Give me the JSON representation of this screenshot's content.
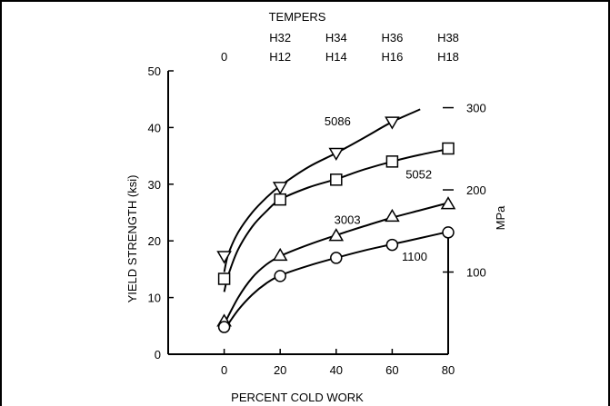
{
  "chart_data": {
    "type": "line",
    "xlabel": "PERCENT COLD WORK",
    "ylabel": "YIELD STRENGTH (ksi)",
    "ylabel_right": "MPa",
    "top_axis_title": "TEMPERS",
    "top_ticks": [
      {
        "x": 0,
        "row1": "",
        "row2": "0"
      },
      {
        "x": 20,
        "row1": "H32",
        "row2": "H12"
      },
      {
        "x": 40,
        "row1": "H34",
        "row2": "H14"
      },
      {
        "x": 60,
        "row1": "H36",
        "row2": "H16"
      },
      {
        "x": 80,
        "row1": "H38",
        "row2": "H18"
      }
    ],
    "xlim": [
      -20,
      80
    ],
    "ylim": [
      0,
      50
    ],
    "xticks": [
      0,
      20,
      40,
      60,
      80
    ],
    "yticks": [
      0,
      10,
      20,
      30,
      40,
      50
    ],
    "right_ticks": [
      {
        "label": "100",
        "ksi": 14.5
      },
      {
        "label": "200",
        "ksi": 29.0
      },
      {
        "label": "300",
        "ksi": 43.5
      }
    ],
    "series": [
      {
        "name": "5086",
        "marker": "triangle-down",
        "points": [
          [
            0,
            17.3
          ],
          [
            20,
            29.5
          ],
          [
            40,
            35.5
          ],
          [
            60,
            41
          ]
        ],
        "curve": [
          [
            0,
            14.5
          ],
          [
            1.5,
            17.7
          ],
          [
            5,
            21.5
          ],
          [
            10,
            25.0
          ],
          [
            15,
            27.6
          ],
          [
            20,
            29.7
          ],
          [
            30,
            33.0
          ],
          [
            40,
            35.5
          ],
          [
            50,
            38.2
          ],
          [
            60,
            41.0
          ],
          [
            70,
            43.2
          ]
        ]
      },
      {
        "name": "5052",
        "marker": "square",
        "points": [
          [
            0,
            13.3
          ],
          [
            20,
            27.3
          ],
          [
            40,
            30.8
          ],
          [
            60,
            34
          ],
          [
            80,
            36.3
          ]
        ],
        "curve": [
          [
            0,
            11.0
          ],
          [
            1.5,
            14.0
          ],
          [
            5,
            18.5
          ],
          [
            10,
            22.5
          ],
          [
            15,
            25.2
          ],
          [
            20,
            27.3
          ],
          [
            30,
            29.4
          ],
          [
            40,
            30.9
          ],
          [
            50,
            32.6
          ],
          [
            60,
            34.0
          ],
          [
            70,
            35.2
          ],
          [
            80,
            36.2
          ]
        ]
      },
      {
        "name": "3003",
        "marker": "triangle-up",
        "points": [
          [
            0,
            5.8
          ],
          [
            20,
            17.4
          ],
          [
            40,
            20.9
          ],
          [
            60,
            24.3
          ],
          [
            80,
            26.5
          ]
        ],
        "curve": [
          [
            0,
            5.3
          ],
          [
            5,
            10.0
          ],
          [
            10,
            13.5
          ],
          [
            15,
            15.8
          ],
          [
            20,
            17.3
          ],
          [
            30,
            19.3
          ],
          [
            40,
            21.0
          ],
          [
            50,
            22.6
          ],
          [
            60,
            24.1
          ],
          [
            70,
            25.4
          ],
          [
            80,
            26.7
          ]
        ]
      },
      {
        "name": "1100",
        "marker": "circle",
        "points": [
          [
            0,
            4.8
          ],
          [
            20,
            13.8
          ],
          [
            40,
            17.0
          ],
          [
            60,
            19.3
          ],
          [
            80,
            21.5
          ]
        ],
        "curve": [
          [
            0,
            4.3
          ],
          [
            5,
            7.8
          ],
          [
            10,
            10.5
          ],
          [
            15,
            12.5
          ],
          [
            20,
            13.9
          ],
          [
            30,
            15.6
          ],
          [
            40,
            17.0
          ],
          [
            50,
            18.3
          ],
          [
            60,
            19.4
          ],
          [
            70,
            20.5
          ],
          [
            80,
            21.6
          ]
        ]
      }
    ],
    "series_label_positions": [
      {
        "name": "5086",
        "x": 40.5,
        "y": 41.2
      },
      {
        "name": "5052",
        "x": 69.5,
        "y": 31.8
      },
      {
        "name": "3003",
        "x": 44,
        "y": 23.8
      },
      {
        "name": "1100",
        "x": 68,
        "y": 17.3
      }
    ]
  }
}
